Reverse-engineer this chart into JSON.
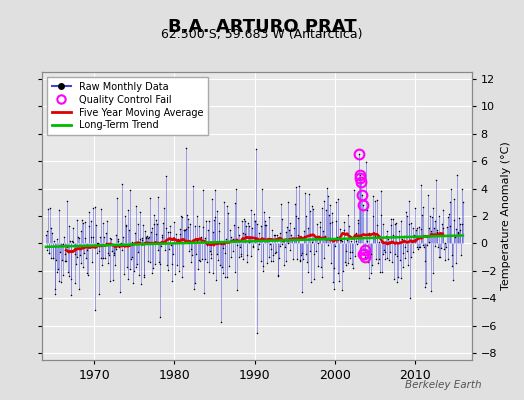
{
  "title": "B.A. ARTURO PRAT",
  "subtitle": "62.500 S, 59.683 W (Antarctica)",
  "ylabel_right": "Temperature Anomaly (°C)",
  "credit": "Berkeley Earth",
  "ylim": [
    -8.5,
    12.5
  ],
  "yticks": [
    -8,
    -6,
    -4,
    -2,
    0,
    2,
    4,
    6,
    8,
    10,
    12
  ],
  "xlim": [
    1963.5,
    2017.0
  ],
  "xticks": [
    1970,
    1980,
    1990,
    2000,
    2010
  ],
  "start_year": 1964.0,
  "end_year": 2016.0,
  "bg_color": "#e0e0e0",
  "plot_bg_color": "#e8e8e8",
  "grid_color": "#ffffff",
  "title_fontsize": 13,
  "subtitle_fontsize": 9,
  "raw_color": "#4444dd",
  "ma_color": "#dd0000",
  "trend_color": "#00bb00",
  "qc_color": "#ff00ff",
  "seed": 42,
  "noise_std": 1.8,
  "trend_slope": 0.016,
  "trend_intercept": -0.25,
  "ma_window": 60,
  "spike_1990_idx": 314,
  "spike_1990_val": 6.9,
  "spike_1990b_idx": 315,
  "spike_1990b_val": -6.5,
  "spike_1978_idx": 170,
  "spike_1978_val": -5.4,
  "qc_indices": [
    468,
    469,
    470,
    471,
    472,
    473,
    474,
    475,
    476,
    477
  ],
  "qc_values": [
    6.5,
    5.0,
    4.8,
    4.5,
    3.5,
    2.8,
    -0.8,
    -0.8,
    -0.5,
    -1.0
  ]
}
